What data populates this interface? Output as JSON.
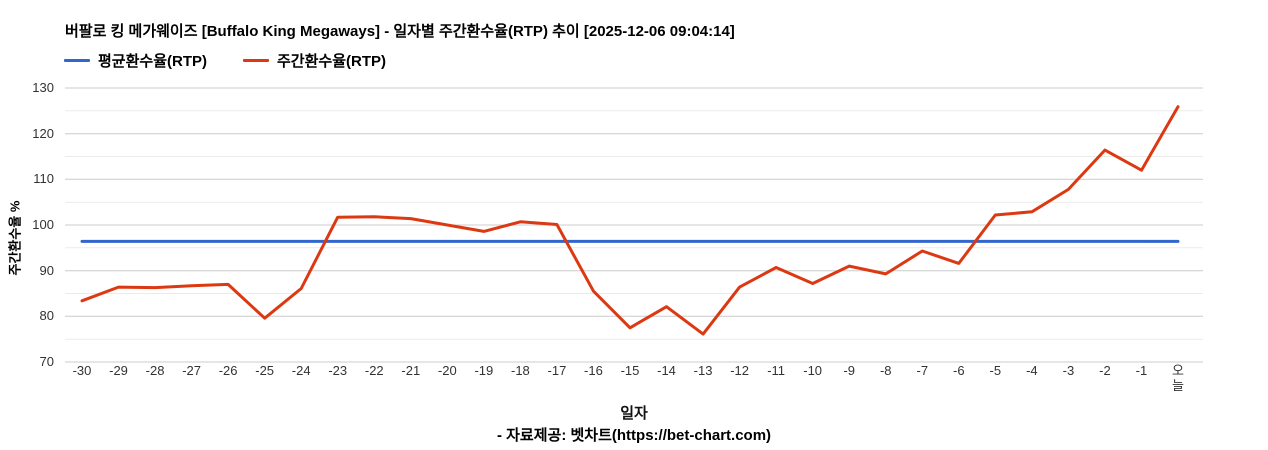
{
  "legend": {
    "items": [
      {
        "label": "평균환수율(RTP)",
        "color": "#3366cc"
      },
      {
        "label": "주간환수율(RTP)",
        "color": "#dc3912"
      }
    ],
    "position": "top"
  },
  "chart_data": {
    "type": "line",
    "title": "버팔로 킹 메가웨이즈 [Buffalo King Megaways] - 일자별 주간환수율(RTP) 추이 [2025-12-06 09:04:14]",
    "xlabel": "일자",
    "ylabel": "주간환수율 %",
    "ylim": [
      70,
      130
    ],
    "ytick_step": 10,
    "ygrid_minor_step": 5,
    "grid": true,
    "legend_position": "top",
    "categories": [
      "-30",
      "-29",
      "-28",
      "-27",
      "-26",
      "-25",
      "-24",
      "-23",
      "-22",
      "-21",
      "-20",
      "-19",
      "-18",
      "-17",
      "-16",
      "-15",
      "-14",
      "-13",
      "-12",
      "-11",
      "-10",
      "-9",
      "-8",
      "-7",
      "-6",
      "-5",
      "-4",
      "-3",
      "-2",
      "-1",
      "오늘"
    ],
    "series": [
      {
        "id": "average-rtp",
        "name": "평균환수율(RTP)",
        "color": "#3366cc",
        "constant_value": 96.4
      },
      {
        "id": "weekly-rtp",
        "name": "주간환수율(RTP)",
        "color": "#dc3912",
        "values": [
          83.4,
          86.4,
          86.3,
          86.7,
          87.0,
          79.6,
          86.1,
          101.7,
          101.8,
          101.4,
          100.0,
          98.6,
          100.7,
          100.1,
          85.5,
          77.5,
          82.1,
          76.1,
          86.4,
          90.7,
          87.2,
          91.0,
          89.3,
          94.3,
          91.6,
          102.2,
          102.9,
          107.8,
          116.4,
          112.0,
          125.9
        ]
      }
    ],
    "gridline_color_major": "#cccccc",
    "gridline_color_minor": "#ebebeb"
  },
  "footer": {
    "source": "- 자료제공: 벳차트(https://bet-chart.com)"
  }
}
